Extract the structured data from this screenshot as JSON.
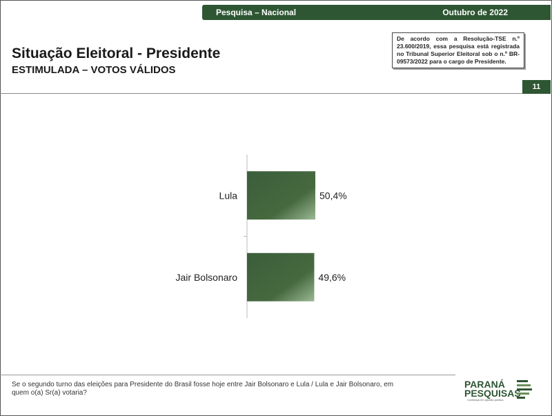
{
  "header": {
    "left_label": "Pesquisa – Nacional",
    "right_label": "Outubro de 2022"
  },
  "title": "Situação Eleitoral - Presidente",
  "subtitle": "ESTIMULADA – VOTOS VÁLIDOS",
  "legal_note": "De acordo com a Resolução-TSE n.º 23.600/2019, essa pesquisa está registrada no Tribunal Superior Eleitoral sob o n.º BR-09573/2022 para o cargo de Presidente.",
  "page_number": "11",
  "footnote": "Se o segundo turno das eleições para Presidente do Brasil fosse hoje entre Jair Bolsonaro e Lula / Lula e Jair Bolsonaro, em quem o(a) Sr(a) votaria?",
  "logo": {
    "line1": "PARANÁ",
    "line2": "PESQUISAS",
    "tagline": "Confiança em opinião pública"
  },
  "colors": {
    "brand_green": "#2e5633",
    "bar_dark": "#3b5e3b",
    "bar_light": "#8fae8a"
  },
  "chart_data": {
    "type": "bar",
    "orientation": "horizontal",
    "categories": [
      "Lula",
      "Jair Bolsonaro"
    ],
    "values": [
      50.4,
      49.6
    ],
    "value_labels": [
      "50,4%",
      "49,6%"
    ],
    "title": "",
    "xlabel": "",
    "ylabel": "",
    "xlim": [
      0,
      100
    ],
    "grid": false,
    "legend": "none"
  }
}
